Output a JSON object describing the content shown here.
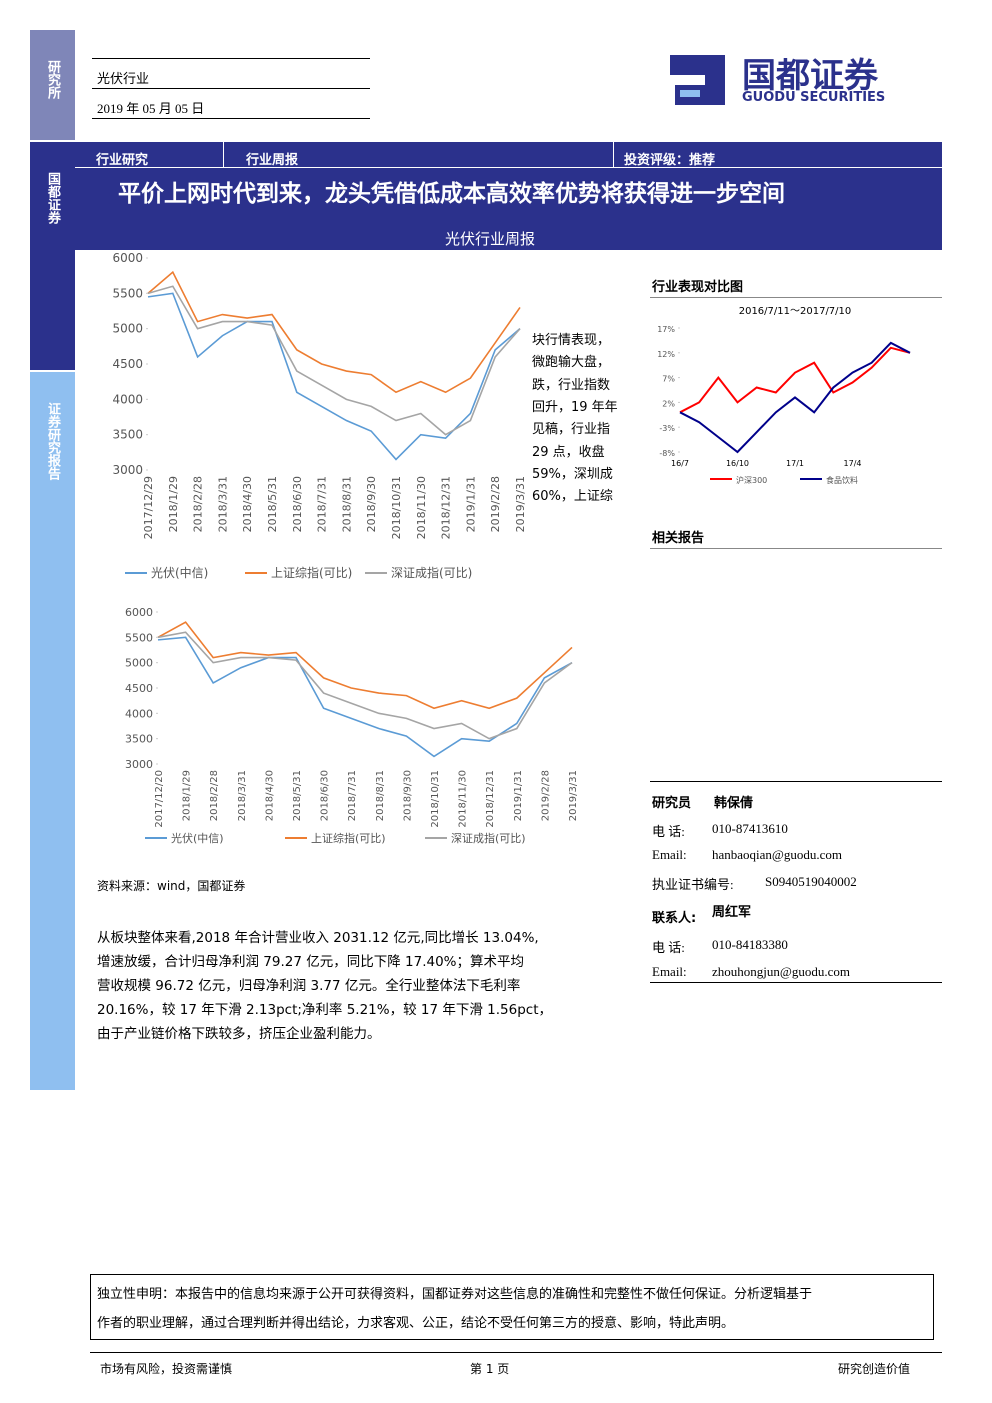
{
  "header": {
    "department": "研究所",
    "industry": "光伏行业",
    "date": "2019 年 05 月 05 日",
    "logo_cn": "国都证券",
    "logo_en": "GUODU SECURITIES"
  },
  "sidebar": {
    "top": "研究所",
    "middle": "国都证券",
    "bottom": "证券研究报告"
  },
  "banner": {
    "category": "行业研究",
    "report_type": "行业周报",
    "rating": "投资评级：推荐",
    "title": "平价上网时代到来，龙头凭借低成本高效率优势将获得进一步空间",
    "subtitle": "光伏行业周报"
  },
  "fragment_lines": [
    "块行情表现，",
    "微跑输大盘，",
    "跌，行业指数",
    "回升，19 年年",
    "见稿，行业指",
    "29 点，收盘",
    "59%，深圳成",
    "60%，上证综"
  ],
  "source": "资料来源：wind，国都证券",
  "paragraph": [
    "从板块整体来看,2018 年合计营业收入 2031.12 亿元,同比增长 13.04%,",
    "增速放缓，合计归母净利润 79.27 亿元，同比下降 17.40%；算术平均",
    "营收规模 96.72 亿元，归母净利润 3.77 亿元。全行业整体法下毛利率",
    "20.16%，较 17 年下滑 2.13pct;净利率 5.21%，较 17 年下滑 1.56pct，",
    "由于产业链价格下跌较多，挤压企业盈利能力。"
  ],
  "right": {
    "compare_title": "行业表现对比图",
    "related_title": "相关报告",
    "researcher_label": "研究员",
    "researcher": "韩保倩",
    "phone_label": "电 话:",
    "phone": "010-87413610",
    "email_label": "Email:",
    "email": "hanbaoqian@guodu.com",
    "cert_label": "执业证书编号:",
    "cert": "S0940519040002",
    "contact_label": "联系人:",
    "contact": "周红军",
    "contact_phone_label": "电 话:",
    "contact_phone": "010-84183380",
    "contact_email_label": "Email:",
    "contact_email": "zhouhongjun@guodu.com"
  },
  "disclaimer": [
    "独立性申明：本报告中的信息均来源于公开可获得资料，国都证券对这些信息的准确性和完整性不做任何保证。分析逻辑基于",
    "作者的职业理解，通过合理判断并得出结论，力求客观、公正，结论不受任何第三方的授意、影响，特此声明。"
  ],
  "footer": {
    "left": "市场有风险，投资需谨慎",
    "page": "第 1 页",
    "right": "研究创造价值"
  },
  "chart_data": [
    {
      "type": "line",
      "categories": [
        "2017/12/29",
        "2018/1/29",
        "2018/2/28",
        "2018/3/31",
        "2018/4/30",
        "2018/5/31",
        "2018/6/30",
        "2018/7/31",
        "2018/8/31",
        "2018/9/30",
        "2018/10/31",
        "2018/11/30",
        "2018/12/31",
        "2019/1/31",
        "2019/2/28",
        "2019/3/31"
      ],
      "ylim": [
        3000,
        6000
      ],
      "yticks": [
        3000,
        3500,
        4000,
        4500,
        5000,
        5500,
        6000
      ],
      "series": [
        {
          "name": "光伏(中信)",
          "color": "#5b9bd5",
          "values": [
            5450,
            5500,
            4600,
            4900,
            5100,
            5100,
            4100,
            3900,
            3700,
            3550,
            3150,
            3500,
            3450,
            3800,
            4700,
            5000
          ]
        },
        {
          "name": "上证综指(可比)",
          "color": "#ed7d31",
          "values": [
            5500,
            5800,
            5100,
            5200,
            5150,
            5200,
            4700,
            4500,
            4400,
            4350,
            4100,
            4250,
            4100,
            4300,
            4800,
            5300
          ]
        },
        {
          "name": "深证成指(可比)",
          "color": "#a5a5a5",
          "values": [
            5500,
            5600,
            5000,
            5100,
            5100,
            5050,
            4400,
            4200,
            4000,
            3900,
            3700,
            3800,
            3500,
            3700,
            4600,
            5000
          ]
        }
      ]
    },
    {
      "type": "line",
      "categories": [
        "2017/12/20",
        "2018/1/29",
        "2018/2/28",
        "2018/3/31",
        "2018/4/30",
        "2018/5/31",
        "2018/6/30",
        "2018/7/31",
        "2018/8/31",
        "2018/9/30",
        "2018/10/31",
        "2018/11/30",
        "2018/12/31",
        "2019/1/31",
        "2019/2/28",
        "2019/3/31"
      ],
      "ylim": [
        3000,
        6000
      ],
      "yticks": [
        3000,
        3500,
        4000,
        4500,
        5000,
        5500,
        6000
      ],
      "series": [
        {
          "name": "光伏(中信)",
          "color": "#5b9bd5",
          "values": [
            5450,
            5500,
            4600,
            4900,
            5100,
            5100,
            4100,
            3900,
            3700,
            3550,
            3150,
            3500,
            3450,
            3800,
            4700,
            5000
          ]
        },
        {
          "name": "上证综指(可比)",
          "color": "#ed7d31",
          "values": [
            5500,
            5800,
            5100,
            5200,
            5150,
            5200,
            4700,
            4500,
            4400,
            4350,
            4100,
            4250,
            4100,
            4300,
            4800,
            5300
          ]
        },
        {
          "name": "深证成指(可比)",
          "color": "#a5a5a5",
          "values": [
            5500,
            5600,
            5000,
            5100,
            5100,
            5050,
            4400,
            4200,
            4000,
            3900,
            3700,
            3800,
            3500,
            3700,
            4600,
            5000
          ]
        }
      ]
    },
    {
      "type": "line",
      "title": "2016/7/11～2017/7/10",
      "categories": [
        "16/7",
        null,
        null,
        "16/10",
        null,
        null,
        "17/1",
        null,
        null,
        "17/4",
        null,
        null,
        null
      ],
      "ylim": [
        -8,
        17
      ],
      "yticks": [
        {
          "value": -8,
          "label": "-8%"
        },
        {
          "value": -3,
          "label": "-3%"
        },
        {
          "value": 2,
          "label": "2%"
        },
        {
          "value": 7,
          "label": "7%"
        },
        {
          "value": 12,
          "label": "12%"
        },
        {
          "value": 17,
          "label": "17%"
        }
      ],
      "series": [
        {
          "name": "沪深300",
          "color": "#ff0000",
          "values": [
            0,
            2,
            7,
            2,
            5,
            4,
            8,
            10,
            4,
            6,
            9,
            13,
            12
          ]
        },
        {
          "name": "食品饮料",
          "color": "#00008b",
          "values": [
            0,
            -2,
            -5,
            -8,
            -4,
            0,
            3,
            0,
            5,
            8,
            10,
            14,
            12
          ]
        }
      ]
    }
  ]
}
